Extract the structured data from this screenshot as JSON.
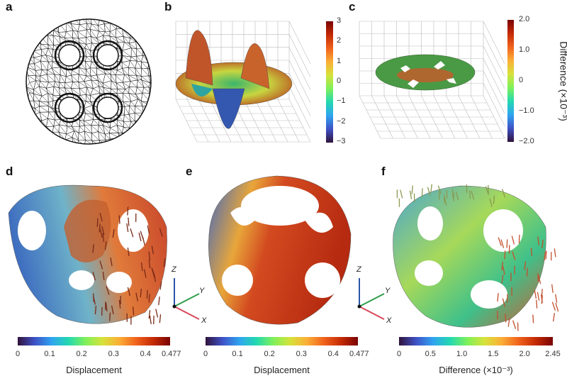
{
  "panels": {
    "a": {
      "label": "a"
    },
    "b": {
      "label": "b",
      "colorbar": {
        "ticks": [
          "3",
          "2",
          "1",
          "0",
          "−1",
          "−2",
          "−3"
        ],
        "min": -3,
        "max": 3
      }
    },
    "c": {
      "label": "c",
      "colorbar": {
        "ticks": [
          "2.0",
          "1.0",
          "0",
          "−1.0",
          "−2.0"
        ],
        "min": -2.0,
        "max": 2.0,
        "title": "Difference (×10⁻³)"
      }
    },
    "d": {
      "label": "d",
      "colorbar": {
        "ticks": [
          "0",
          "0.1",
          "0.2",
          "0.3",
          "0.4",
          "0.477"
        ],
        "min": 0,
        "max": 0.477,
        "title": "Displacement"
      }
    },
    "e": {
      "label": "e",
      "colorbar": {
        "ticks": [
          "0",
          "0.1",
          "0.2",
          "0.3",
          "0.4",
          "0.477"
        ],
        "min": 0,
        "max": 0.477,
        "title": "Displacement"
      }
    },
    "f": {
      "label": "f",
      "colorbar": {
        "ticks": [
          "0",
          "0.5",
          "1.0",
          "1.5",
          "2.0",
          "2.45"
        ],
        "min": 0,
        "max": 2.45,
        "title": "Difference (×10⁻³)"
      }
    }
  },
  "axes_triad": {
    "x": "X",
    "y": "Y",
    "z": "Z",
    "colors": {
      "x": "#d9475a",
      "y": "#2e9e4a",
      "z": "#2b56a8"
    }
  },
  "colormap": [
    "#30123b",
    "#3f51c6",
    "#2fa4f0",
    "#23d9b0",
    "#7ef05a",
    "#d6e23a",
    "#fbae36",
    "#f0621c",
    "#c42a05",
    "#7a0403"
  ]
}
